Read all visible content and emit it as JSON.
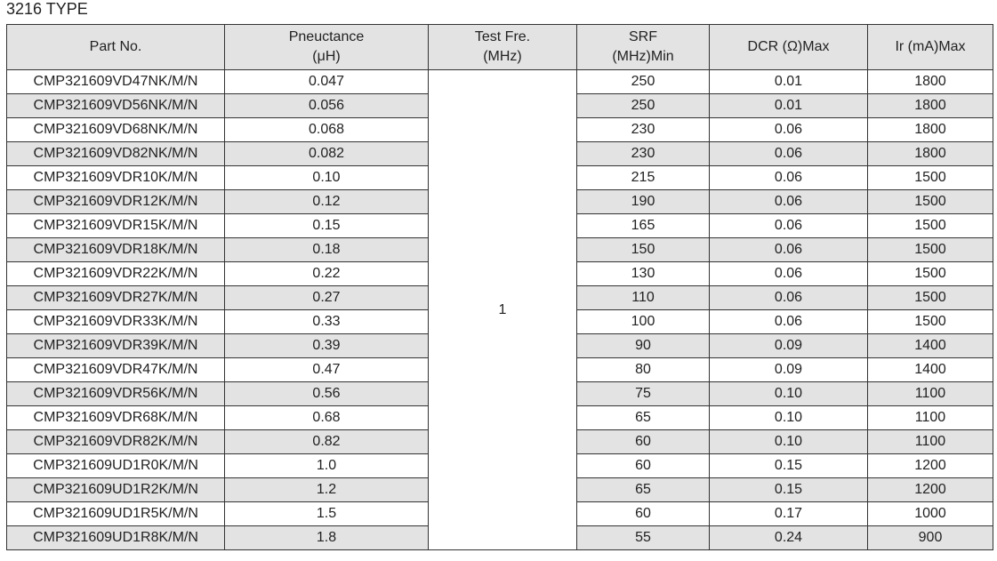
{
  "title": "3216 TYPE",
  "table": {
    "header": [
      [
        "Part No."
      ],
      [
        "Pneuctance",
        "(μH)"
      ],
      [
        "Test Fre.",
        "(MHz)"
      ],
      [
        "SRF",
        "(MHz)Min"
      ],
      [
        "DCR (Ω)Max"
      ],
      [
        "Ir (mA)Max"
      ]
    ],
    "test_freq": "1",
    "rows": [
      [
        "CMP321609VD47NK/M/N",
        "0.047",
        "250",
        "0.01",
        "1800"
      ],
      [
        "CMP321609VD56NK/M/N",
        "0.056",
        "250",
        "0.01",
        "1800"
      ],
      [
        "CMP321609VD68NK/M/N",
        "0.068",
        "230",
        "0.06",
        "1800"
      ],
      [
        "CMP321609VD82NK/M/N",
        "0.082",
        "230",
        "0.06",
        "1800"
      ],
      [
        "CMP321609VDR10K/M/N",
        "0.10",
        "215",
        "0.06",
        "1500"
      ],
      [
        "CMP321609VDR12K/M/N",
        "0.12",
        "190",
        "0.06",
        "1500"
      ],
      [
        "CMP321609VDR15K/M/N",
        "0.15",
        "165",
        "0.06",
        "1500"
      ],
      [
        "CMP321609VDR18K/M/N",
        "0.18",
        "150",
        "0.06",
        "1500"
      ],
      [
        "CMP321609VDR22K/M/N",
        "0.22",
        "130",
        "0.06",
        "1500"
      ],
      [
        "CMP321609VDR27K/M/N",
        "0.27",
        "110",
        "0.06",
        "1500"
      ],
      [
        "CMP321609VDR33K/M/N",
        "0.33",
        "100",
        "0.06",
        "1500"
      ],
      [
        "CMP321609VDR39K/M/N",
        "0.39",
        "90",
        "0.09",
        "1400"
      ],
      [
        "CMP321609VDR47K/M/N",
        "0.47",
        "80",
        "0.09",
        "1400"
      ],
      [
        "CMP321609VDR56K/M/N",
        "0.56",
        "75",
        "0.10",
        "1100"
      ],
      [
        "CMP321609VDR68K/M/N",
        "0.68",
        "65",
        "0.10",
        "1100"
      ],
      [
        "CMP321609VDR82K/M/N",
        "0.82",
        "60",
        "0.10",
        "1100"
      ],
      [
        "CMP321609UD1R0K/M/N",
        "1.0",
        "60",
        "0.15",
        "1200"
      ],
      [
        "CMP321609UD1R2K/M/N",
        "1.2",
        "65",
        "0.15",
        "1200"
      ],
      [
        "CMP321609UD1R5K/M/N",
        "1.5",
        "60",
        "0.17",
        "1000"
      ],
      [
        "CMP321609UD1R8K/M/N",
        "1.8",
        "55",
        "0.24",
        "900"
      ]
    ]
  }
}
